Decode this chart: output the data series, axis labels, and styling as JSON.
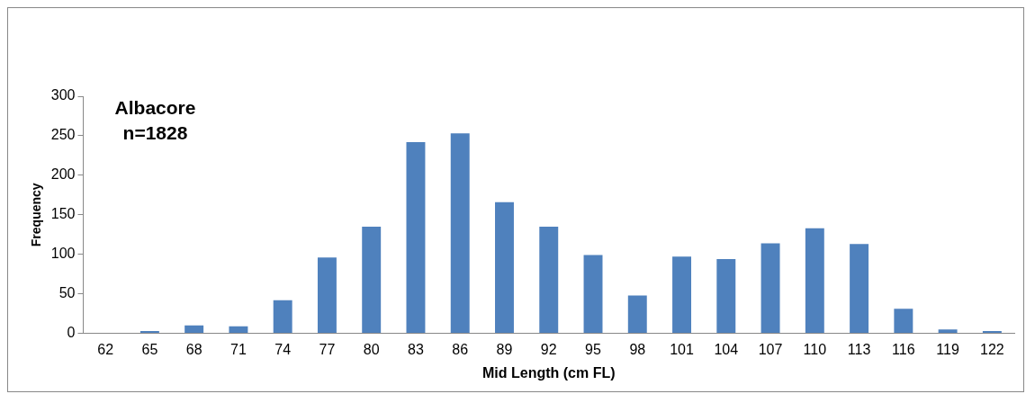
{
  "chart_data": {
    "type": "bar",
    "xlabel": "Mid Length (cm FL)",
    "ylabel": "Frequency",
    "annotations": [
      "Albacore",
      "n=1828"
    ],
    "categories": [
      "62",
      "65",
      "68",
      "71",
      "74",
      "77",
      "80",
      "83",
      "86",
      "89",
      "92",
      "95",
      "98",
      "101",
      "104",
      "107",
      "110",
      "113",
      "116",
      "119",
      "122"
    ],
    "values": [
      0,
      3,
      10,
      9,
      42,
      96,
      135,
      242,
      253,
      166,
      135,
      99,
      48,
      97,
      94,
      114,
      133,
      113,
      31,
      5,
      3
    ],
    "color": "#4f81bd",
    "ylim": [
      0,
      300
    ],
    "yticks": [
      0,
      50,
      100,
      150,
      200,
      250,
      300
    ],
    "grid": false,
    "legend": false
  }
}
